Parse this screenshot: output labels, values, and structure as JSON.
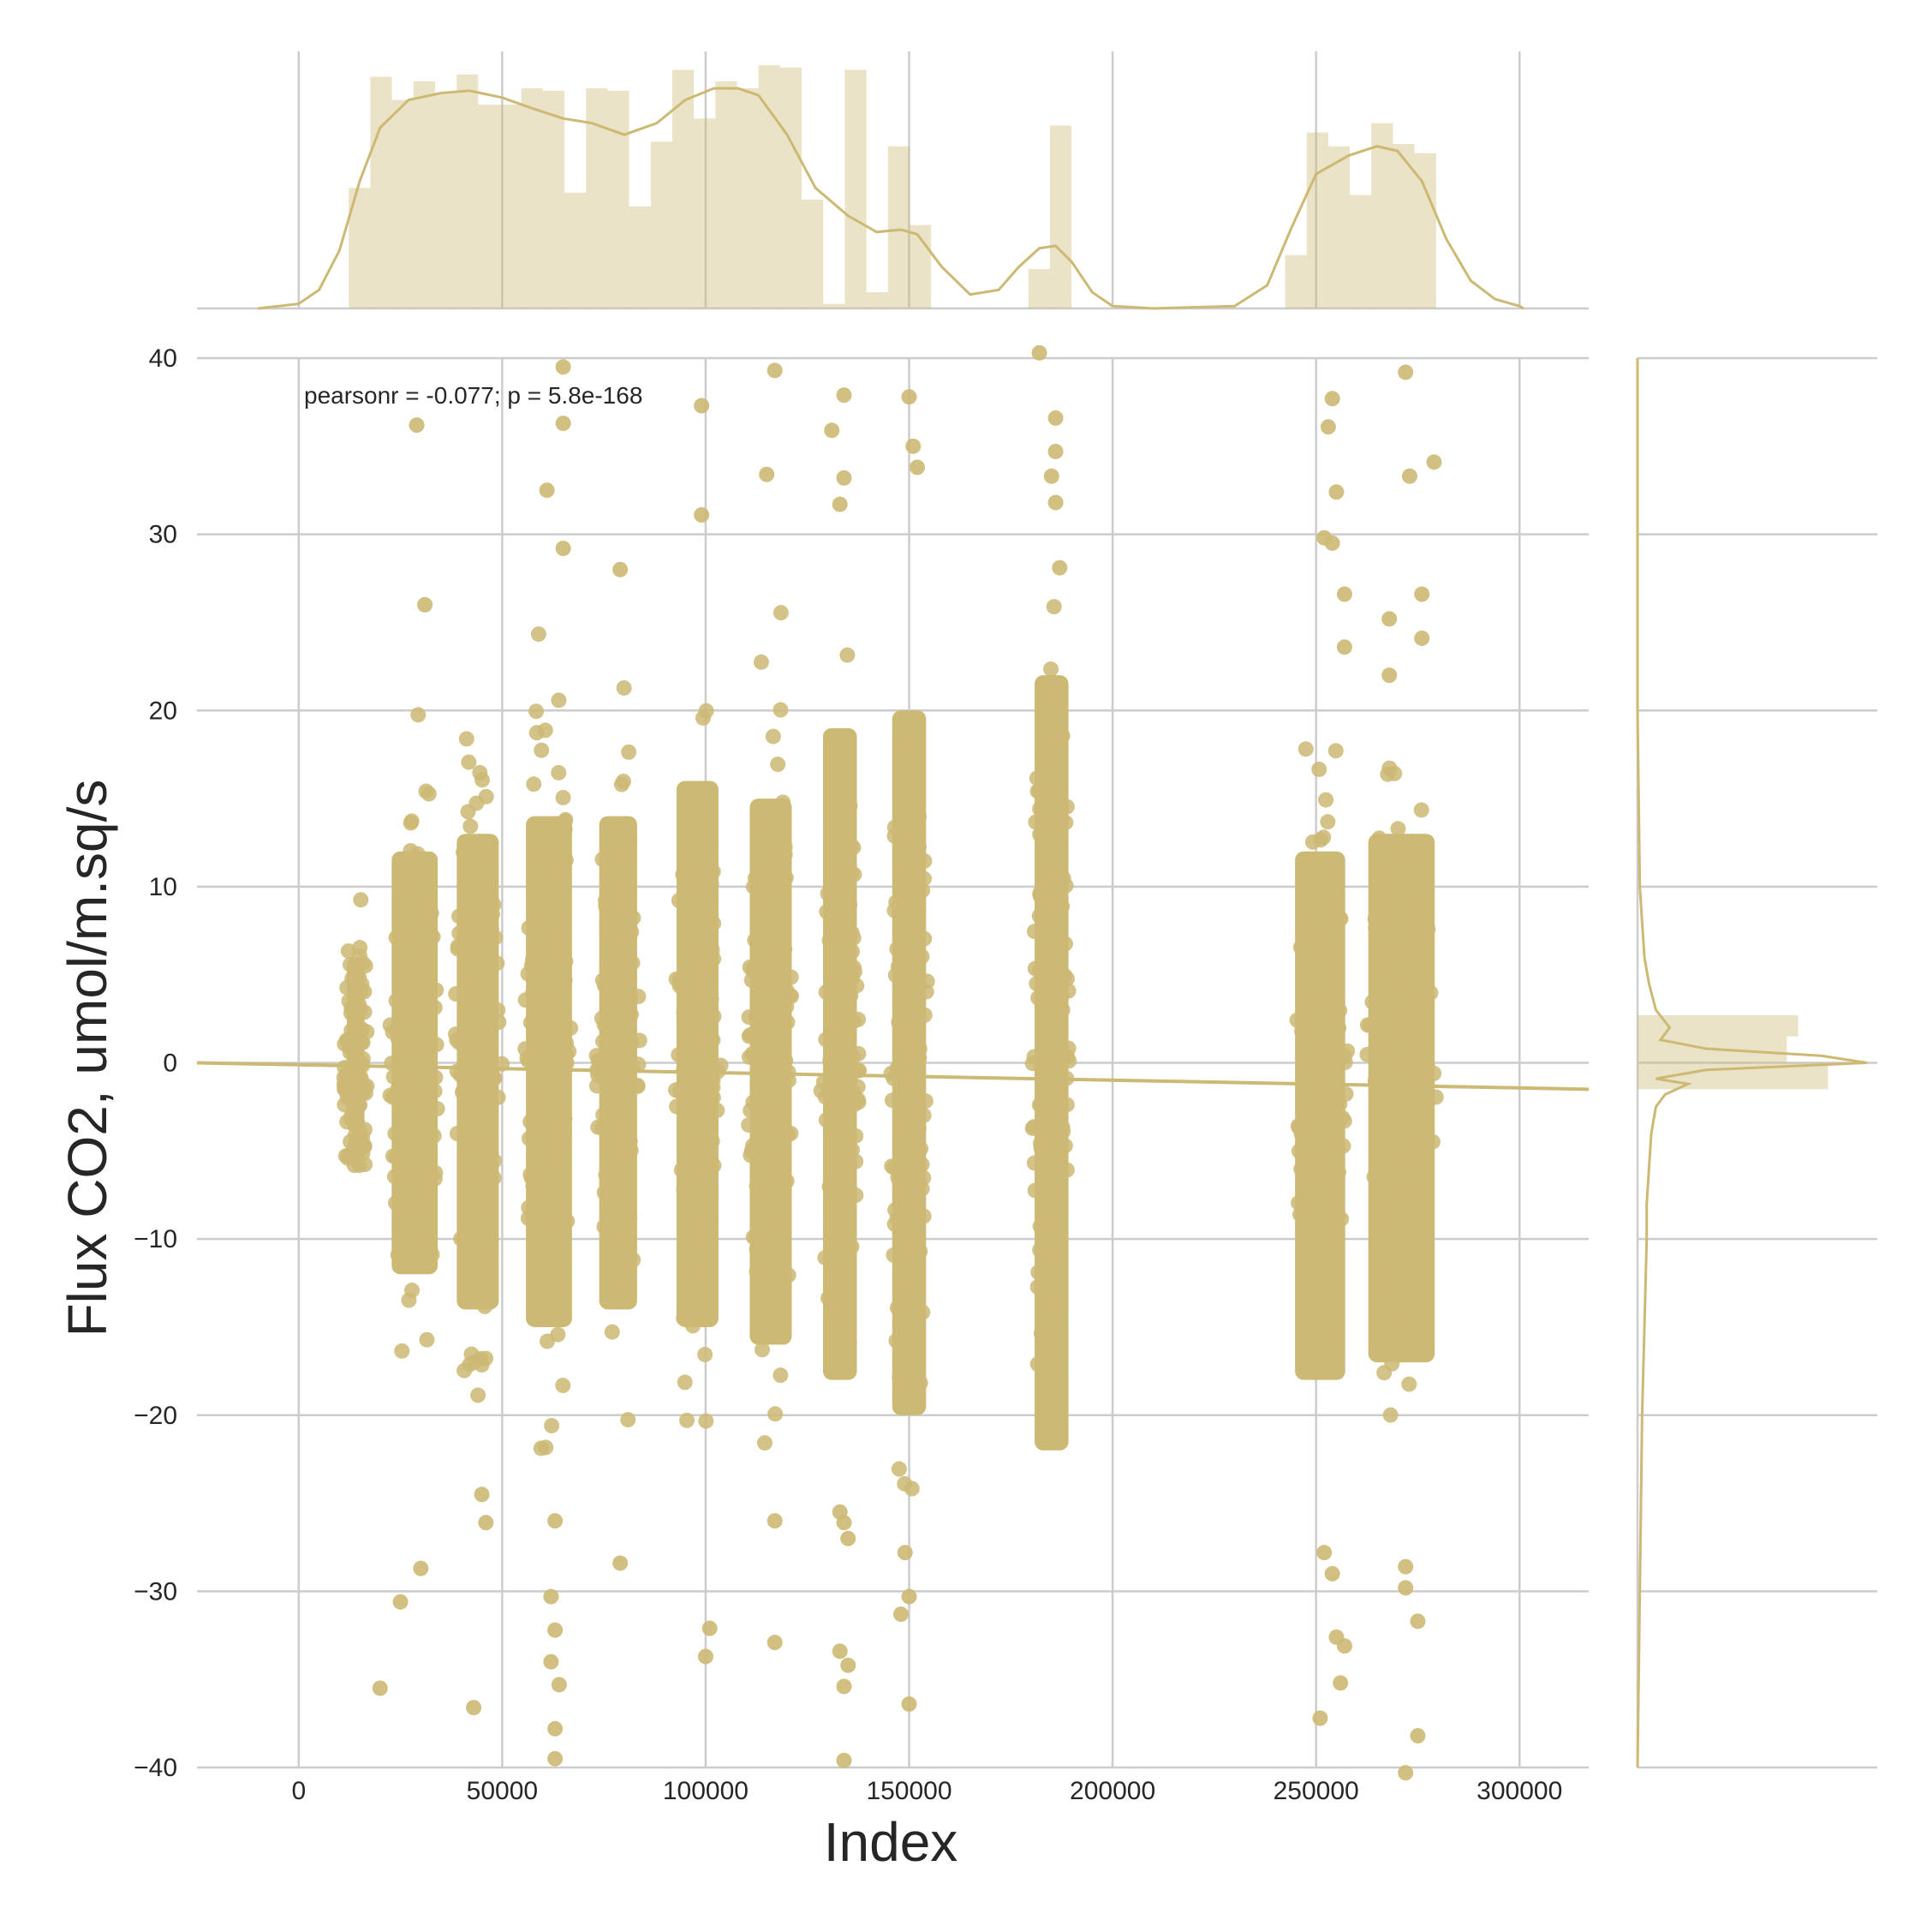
{
  "chart_data": {
    "type": "scatter",
    "subtype": "joint plot with regression line and marginal histograms/KDE",
    "xlabel": "Index",
    "ylabel": "Flux CO2, umol/m.sq/s",
    "annotation": "pearsonr = -0.077; p = 5.8e-168",
    "xlim": [
      -25000,
      317000
    ],
    "ylim": [
      -40,
      40
    ],
    "x_ticks": [
      0,
      50000,
      100000,
      150000,
      200000,
      250000,
      300000
    ],
    "x_tick_labels": [
      "0",
      "50000",
      "100000",
      "150000",
      "200000",
      "250000",
      "300000"
    ],
    "y_ticks": [
      -40,
      -30,
      -20,
      -10,
      0,
      10,
      20,
      30,
      40
    ],
    "y_tick_labels": [
      "−40",
      "−30",
      "−20",
      "−10",
      "0",
      "10",
      "20",
      "30",
      "40"
    ],
    "grid": true,
    "color": "#ccb974",
    "regression_line": {
      "x": [
        -25000,
        317000
      ],
      "y": [
        0.0,
        -1.5
      ]
    },
    "clusters": [
      {
        "x_range": [
          11000,
          17000
        ],
        "core": [
          -4,
          6
        ],
        "extent": [
          -6,
          18
        ]
      },
      {
        "x_range": [
          22000,
          35000
        ],
        "core": [
          -12,
          12
        ],
        "extent": [
          -19,
          20
        ]
      },
      {
        "x_range": [
          38000,
          50000
        ],
        "core": [
          -14,
          13
        ],
        "extent": [
          -21,
          24
        ]
      },
      {
        "x_range": [
          55000,
          68000
        ],
        "core": [
          -15,
          14
        ],
        "extent": [
          -22,
          25
        ]
      },
      {
        "x_range": [
          73000,
          84000
        ],
        "core": [
          -14,
          14
        ],
        "extent": [
          -22,
          24
        ]
      },
      {
        "x_range": [
          92000,
          104000
        ],
        "core": [
          -15,
          16
        ],
        "extent": [
          -21,
          23
        ]
      },
      {
        "x_range": [
          110000,
          122000
        ],
        "core": [
          -16,
          15
        ],
        "extent": [
          -22,
          27
        ]
      },
      {
        "x_range": [
          128000,
          138000
        ],
        "core": [
          -18,
          19
        ],
        "extent": [
          -21,
          25
        ]
      },
      {
        "x_range": [
          145000,
          155000
        ],
        "core": [
          -20,
          20
        ],
        "extent": [
          -25,
          28
        ]
      },
      {
        "x_range": [
          180000,
          190000
        ],
        "core": [
          -22,
          22
        ],
        "extent": [
          -27,
          37
        ]
      },
      {
        "x_range": [
          244000,
          258000
        ],
        "core": [
          -18,
          12
        ],
        "extent": [
          -24,
          19
        ]
      },
      {
        "x_range": [
          262000,
          280000
        ],
        "core": [
          -17,
          13
        ],
        "extent": [
          -23,
          19
        ]
      }
    ],
    "outliers": [
      {
        "x": 29000,
        "y": 36.2
      },
      {
        "x": 31000,
        "y": 26.0
      },
      {
        "x": 30000,
        "y": -28.7
      },
      {
        "x": 25000,
        "y": -30.6
      },
      {
        "x": 20000,
        "y": -35.5
      },
      {
        "x": 43000,
        "y": -36.6
      },
      {
        "x": 45000,
        "y": -24.5
      },
      {
        "x": 46000,
        "y": -26.1
      },
      {
        "x": 61000,
        "y": 32.5
      },
      {
        "x": 65000,
        "y": 39.5
      },
      {
        "x": 65000,
        "y": 36.3
      },
      {
        "x": 65000,
        "y": 29.2
      },
      {
        "x": 63000,
        "y": -26.0
      },
      {
        "x": 62000,
        "y": -30.3
      },
      {
        "x": 63000,
        "y": -32.2
      },
      {
        "x": 62000,
        "y": -34.0
      },
      {
        "x": 64000,
        "y": -35.3
      },
      {
        "x": 63000,
        "y": -37.8
      },
      {
        "x": 63000,
        "y": -39.5
      },
      {
        "x": 79000,
        "y": 28.0
      },
      {
        "x": 79000,
        "y": -28.4
      },
      {
        "x": 99000,
        "y": 37.3
      },
      {
        "x": 99000,
        "y": 31.1
      },
      {
        "x": 101000,
        "y": -32.1
      },
      {
        "x": 100000,
        "y": -33.7
      },
      {
        "x": 117000,
        "y": 39.3
      },
      {
        "x": 115000,
        "y": 33.4
      },
      {
        "x": 117000,
        "y": -26.0
      },
      {
        "x": 117000,
        "y": -32.9
      },
      {
        "x": 131000,
        "y": 35.9
      },
      {
        "x": 134000,
        "y": 37.9
      },
      {
        "x": 133000,
        "y": 31.7
      },
      {
        "x": 134000,
        "y": 33.2
      },
      {
        "x": 133000,
        "y": -25.5
      },
      {
        "x": 134000,
        "y": -26.1
      },
      {
        "x": 135000,
        "y": -27.0
      },
      {
        "x": 133000,
        "y": -33.4
      },
      {
        "x": 135000,
        "y": -34.2
      },
      {
        "x": 134000,
        "y": -35.4
      },
      {
        "x": 134000,
        "y": -39.6
      },
      {
        "x": 150000,
        "y": 37.8
      },
      {
        "x": 151000,
        "y": 35.0
      },
      {
        "x": 152000,
        "y": 33.8
      },
      {
        "x": 149000,
        "y": -27.8
      },
      {
        "x": 150000,
        "y": -30.3
      },
      {
        "x": 148000,
        "y": -31.3
      },
      {
        "x": 150000,
        "y": -36.4
      },
      {
        "x": 182000,
        "y": 40.3
      },
      {
        "x": 186000,
        "y": 36.6
      },
      {
        "x": 186000,
        "y": 34.7
      },
      {
        "x": 185000,
        "y": 33.3
      },
      {
        "x": 186000,
        "y": 31.8
      },
      {
        "x": 187000,
        "y": 28.1
      },
      {
        "x": 254000,
        "y": 37.7
      },
      {
        "x": 253000,
        "y": 36.1
      },
      {
        "x": 255000,
        "y": 32.4
      },
      {
        "x": 252000,
        "y": 29.8
      },
      {
        "x": 254000,
        "y": 29.5
      },
      {
        "x": 257000,
        "y": 26.6
      },
      {
        "x": 257000,
        "y": 23.6
      },
      {
        "x": 252000,
        "y": -27.8
      },
      {
        "x": 254000,
        "y": -29.0
      },
      {
        "x": 255000,
        "y": -32.6
      },
      {
        "x": 257000,
        "y": -33.1
      },
      {
        "x": 256000,
        "y": -35.2
      },
      {
        "x": 251000,
        "y": -37.2
      },
      {
        "x": 272000,
        "y": 39.2
      },
      {
        "x": 273000,
        "y": 33.3
      },
      {
        "x": 279000,
        "y": 34.1
      },
      {
        "x": 276000,
        "y": 26.6
      },
      {
        "x": 268000,
        "y": 25.2
      },
      {
        "x": 276000,
        "y": 24.1
      },
      {
        "x": 268000,
        "y": 22.0
      },
      {
        "x": 272000,
        "y": -29.8
      },
      {
        "x": 272000,
        "y": -28.6
      },
      {
        "x": 275000,
        "y": -31.7
      },
      {
        "x": 275000,
        "y": -38.2
      },
      {
        "x": 272000,
        "y": -40.3
      }
    ],
    "top_histogram": {
      "bins": [
        {
          "x0": 12300,
          "x1": 17600,
          "count": 0.52
        },
        {
          "x0": 17600,
          "x1": 22900,
          "count": 1.0
        },
        {
          "x0": 22900,
          "x1": 28200,
          "count": 0.9
        },
        {
          "x0": 28200,
          "x1": 33500,
          "count": 0.98
        },
        {
          "x0": 33500,
          "x1": 38800,
          "count": 0.93
        },
        {
          "x0": 38800,
          "x1": 44100,
          "count": 1.01
        },
        {
          "x0": 44100,
          "x1": 49400,
          "count": 0.88
        },
        {
          "x0": 49400,
          "x1": 54700,
          "count": 0.88
        },
        {
          "x0": 54700,
          "x1": 60000,
          "count": 0.95
        },
        {
          "x0": 60000,
          "x1": 65300,
          "count": 0.94
        },
        {
          "x0": 65300,
          "x1": 70600,
          "count": 0.5
        },
        {
          "x0": 70600,
          "x1": 75900,
          "count": 0.95
        },
        {
          "x0": 75900,
          "x1": 81200,
          "count": 0.94
        },
        {
          "x0": 81200,
          "x1": 86500,
          "count": 0.44
        },
        {
          "x0": 86500,
          "x1": 91800,
          "count": 0.72
        },
        {
          "x0": 91800,
          "x1": 97100,
          "count": 1.03
        },
        {
          "x0": 97100,
          "x1": 102400,
          "count": 0.82
        },
        {
          "x0": 102400,
          "x1": 107700,
          "count": 0.98
        },
        {
          "x0": 107700,
          "x1": 113000,
          "count": 0.95
        },
        {
          "x0": 113000,
          "x1": 118300,
          "count": 1.05
        },
        {
          "x0": 118300,
          "x1": 123600,
          "count": 1.04
        },
        {
          "x0": 123600,
          "x1": 128900,
          "count": 0.47
        },
        {
          "x0": 128900,
          "x1": 134200,
          "count": 0.02
        },
        {
          "x0": 134200,
          "x1": 139500,
          "count": 1.03
        },
        {
          "x0": 139500,
          "x1": 144800,
          "count": 0.07
        },
        {
          "x0": 144800,
          "x1": 150100,
          "count": 0.7
        },
        {
          "x0": 150100,
          "x1": 155400,
          "count": 0.36
        },
        {
          "x0": 179300,
          "x1": 184600,
          "count": 0.17
        },
        {
          "x0": 184600,
          "x1": 189900,
          "count": 0.79
        },
        {
          "x0": 242400,
          "x1": 247700,
          "count": 0.23
        },
        {
          "x0": 247700,
          "x1": 253000,
          "count": 0.76
        },
        {
          "x0": 253000,
          "x1": 258300,
          "count": 0.7
        },
        {
          "x0": 258300,
          "x1": 263600,
          "count": 0.49
        },
        {
          "x0": 263600,
          "x1": 268900,
          "count": 0.8
        },
        {
          "x0": 268900,
          "x1": 274200,
          "count": 0.71
        },
        {
          "x0": 274200,
          "x1": 279500,
          "count": 0.67
        }
      ],
      "kde": [
        [
          -10000,
          0.0
        ],
        [
          0,
          0.02
        ],
        [
          5000,
          0.08
        ],
        [
          10000,
          0.25
        ],
        [
          15000,
          0.55
        ],
        [
          20000,
          0.78
        ],
        [
          27000,
          0.9
        ],
        [
          35000,
          0.93
        ],
        [
          42000,
          0.94
        ],
        [
          50000,
          0.91
        ],
        [
          58000,
          0.86
        ],
        [
          65000,
          0.82
        ],
        [
          72000,
          0.8
        ],
        [
          80000,
          0.75
        ],
        [
          88000,
          0.8
        ],
        [
          95000,
          0.9
        ],
        [
          102000,
          0.95
        ],
        [
          108000,
          0.95
        ],
        [
          113000,
          0.92
        ],
        [
          120000,
          0.75
        ],
        [
          127000,
          0.52
        ],
        [
          135000,
          0.4
        ],
        [
          142000,
          0.33
        ],
        [
          148000,
          0.34
        ],
        [
          152000,
          0.32
        ],
        [
          158000,
          0.18
        ],
        [
          165000,
          0.06
        ],
        [
          172000,
          0.08
        ],
        [
          177000,
          0.18
        ],
        [
          182000,
          0.26
        ],
        [
          186000,
          0.27
        ],
        [
          190000,
          0.2
        ],
        [
          195000,
          0.07
        ],
        [
          200000,
          0.01
        ],
        [
          210000,
          0.0
        ],
        [
          230000,
          0.01
        ],
        [
          238000,
          0.1
        ],
        [
          244000,
          0.35
        ],
        [
          250000,
          0.58
        ],
        [
          258000,
          0.66
        ],
        [
          265000,
          0.7
        ],
        [
          270000,
          0.68
        ],
        [
          276000,
          0.55
        ],
        [
          282000,
          0.3
        ],
        [
          288000,
          0.12
        ],
        [
          294000,
          0.04
        ],
        [
          300000,
          0.01
        ],
        [
          301000,
          0.0
        ]
      ]
    },
    "right_histogram": {
      "bins": [
        {
          "y0": 1.5,
          "y1": 2.7,
          "count": 0.7
        },
        {
          "y0": 0.0,
          "y1": 1.5,
          "count": 0.65
        },
        {
          "y0": -1.5,
          "y1": 0.0,
          "count": 0.83
        }
      ],
      "kde": [
        [
          -40,
          0.0
        ],
        [
          -30,
          0.01
        ],
        [
          -20,
          0.02
        ],
        [
          -15,
          0.03
        ],
        [
          -10,
          0.04
        ],
        [
          -8,
          0.04
        ],
        [
          -6,
          0.05
        ],
        [
          -4,
          0.06
        ],
        [
          -2.5,
          0.08
        ],
        [
          -1.8,
          0.12
        ],
        [
          -1.2,
          0.22
        ],
        [
          -0.9,
          0.08
        ],
        [
          -0.4,
          0.3
        ],
        [
          0,
          1.0
        ],
        [
          0.4,
          0.8
        ],
        [
          0.8,
          0.3
        ],
        [
          1.3,
          0.1
        ],
        [
          2,
          0.14
        ],
        [
          3,
          0.08
        ],
        [
          4.5,
          0.05
        ],
        [
          6,
          0.03
        ],
        [
          8,
          0.02
        ],
        [
          10,
          0.01
        ],
        [
          15,
          0.005
        ],
        [
          20,
          0.0
        ],
        [
          40,
          0.0
        ]
      ]
    }
  }
}
